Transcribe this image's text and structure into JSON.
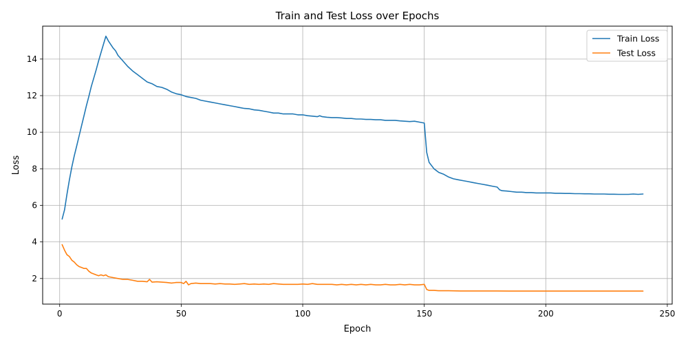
{
  "chart_data": {
    "type": "line",
    "title": "Train and Test Loss over Epochs",
    "xlabel": "Epoch",
    "ylabel": "Loss",
    "xlim": [
      -7,
      252
    ],
    "ylim": [
      0.6,
      15.8
    ],
    "xticks": [
      0,
      50,
      100,
      150,
      200,
      250
    ],
    "yticks": [
      2,
      4,
      6,
      8,
      10,
      12,
      14
    ],
    "grid": true,
    "legend_position": "top-right",
    "series": [
      {
        "name": "Train Loss",
        "color": "#1f77b4",
        "x": [
          1,
          2,
          3,
          4,
          5,
          6,
          7,
          8,
          9,
          10,
          11,
          12,
          13,
          14,
          15,
          16,
          17,
          18,
          19,
          20,
          21,
          22,
          23,
          24,
          25,
          26,
          28,
          30,
          32,
          34,
          36,
          38,
          40,
          42,
          44,
          46,
          48,
          50,
          52,
          54,
          56,
          58,
          60,
          62,
          64,
          66,
          68,
          70,
          72,
          74,
          76,
          78,
          80,
          82,
          84,
          86,
          88,
          90,
          92,
          94,
          96,
          98,
          100,
          102,
          104,
          106,
          107,
          108,
          110,
          112,
          114,
          116,
          118,
          120,
          122,
          124,
          126,
          128,
          130,
          132,
          134,
          136,
          138,
          140,
          142,
          144,
          146,
          148,
          150,
          151,
          152,
          154,
          156,
          158,
          160,
          162,
          164,
          166,
          168,
          170,
          172,
          174,
          176,
          178,
          180,
          181,
          182,
          184,
          186,
          188,
          190,
          192,
          194,
          196,
          198,
          200,
          202,
          204,
          206,
          208,
          210,
          212,
          214,
          216,
          218,
          220,
          222,
          224,
          226,
          228,
          230,
          232,
          234,
          236,
          238,
          240
        ],
        "y": [
          5.25,
          5.75,
          6.6,
          7.4,
          8.1,
          8.7,
          9.25,
          9.8,
          10.35,
          10.9,
          11.45,
          11.95,
          12.5,
          12.95,
          13.4,
          13.9,
          14.35,
          14.8,
          15.25,
          15.0,
          14.8,
          14.6,
          14.45,
          14.2,
          14.05,
          13.9,
          13.6,
          13.35,
          13.15,
          12.95,
          12.75,
          12.65,
          12.5,
          12.45,
          12.35,
          12.2,
          12.1,
          12.05,
          11.95,
          11.9,
          11.85,
          11.75,
          11.7,
          11.65,
          11.6,
          11.55,
          11.5,
          11.45,
          11.4,
          11.35,
          11.3,
          11.28,
          11.22,
          11.2,
          11.15,
          11.1,
          11.05,
          11.05,
          11.0,
          11.0,
          11.0,
          10.95,
          10.95,
          10.9,
          10.88,
          10.85,
          10.9,
          10.85,
          10.82,
          10.8,
          10.8,
          10.78,
          10.75,
          10.75,
          10.72,
          10.72,
          10.7,
          10.7,
          10.68,
          10.68,
          10.65,
          10.65,
          10.65,
          10.62,
          10.6,
          10.58,
          10.6,
          10.55,
          10.5,
          8.9,
          8.35,
          8.0,
          7.8,
          7.7,
          7.55,
          7.45,
          7.4,
          7.35,
          7.3,
          7.25,
          7.2,
          7.15,
          7.1,
          7.05,
          7.0,
          6.85,
          6.8,
          6.78,
          6.75,
          6.72,
          6.72,
          6.7,
          6.7,
          6.68,
          6.68,
          6.68,
          6.68,
          6.66,
          6.66,
          6.65,
          6.65,
          6.64,
          6.64,
          6.63,
          6.63,
          6.62,
          6.62,
          6.62,
          6.61,
          6.61,
          6.6,
          6.6,
          6.6,
          6.62,
          6.6,
          6.62
        ]
      },
      {
        "name": "Test Loss",
        "color": "#ff7f0e",
        "x": [
          1,
          2,
          3,
          4,
          5,
          6,
          7,
          8,
          9,
          10,
          11,
          12,
          13,
          14,
          15,
          16,
          17,
          18,
          19,
          20,
          22,
          24,
          26,
          28,
          30,
          32,
          34,
          36,
          37,
          38,
          40,
          42,
          44,
          46,
          48,
          50,
          51,
          52,
          53,
          54,
          56,
          58,
          60,
          62,
          64,
          66,
          68,
          70,
          72,
          74,
          76,
          78,
          80,
          82,
          84,
          86,
          88,
          90,
          92,
          94,
          96,
          98,
          100,
          102,
          104,
          106,
          108,
          110,
          112,
          114,
          116,
          118,
          120,
          122,
          124,
          126,
          128,
          130,
          132,
          134,
          136,
          138,
          140,
          142,
          144,
          146,
          148,
          150,
          151,
          152,
          154,
          156,
          158,
          160,
          165,
          170,
          175,
          180,
          185,
          190,
          195,
          200,
          205,
          210,
          215,
          220,
          225,
          230,
          235,
          240
        ],
        "y": [
          3.85,
          3.55,
          3.3,
          3.2,
          3.0,
          2.9,
          2.75,
          2.65,
          2.6,
          2.55,
          2.55,
          2.4,
          2.3,
          2.25,
          2.2,
          2.15,
          2.2,
          2.15,
          2.2,
          2.1,
          2.05,
          2.0,
          1.95,
          1.95,
          1.9,
          1.85,
          1.85,
          1.82,
          1.95,
          1.8,
          1.82,
          1.8,
          1.78,
          1.75,
          1.78,
          1.78,
          1.72,
          1.85,
          1.65,
          1.72,
          1.75,
          1.72,
          1.72,
          1.72,
          1.7,
          1.72,
          1.7,
          1.7,
          1.68,
          1.7,
          1.72,
          1.68,
          1.7,
          1.68,
          1.7,
          1.68,
          1.72,
          1.7,
          1.68,
          1.68,
          1.68,
          1.68,
          1.7,
          1.68,
          1.72,
          1.68,
          1.68,
          1.68,
          1.68,
          1.65,
          1.68,
          1.65,
          1.68,
          1.65,
          1.68,
          1.65,
          1.68,
          1.65,
          1.65,
          1.68,
          1.65,
          1.65,
          1.68,
          1.65,
          1.68,
          1.65,
          1.65,
          1.68,
          1.4,
          1.35,
          1.35,
          1.33,
          1.33,
          1.33,
          1.32,
          1.32,
          1.32,
          1.32,
          1.31,
          1.31,
          1.31,
          1.31,
          1.31,
          1.31,
          1.31,
          1.31,
          1.31,
          1.31,
          1.31,
          1.31
        ]
      }
    ]
  }
}
